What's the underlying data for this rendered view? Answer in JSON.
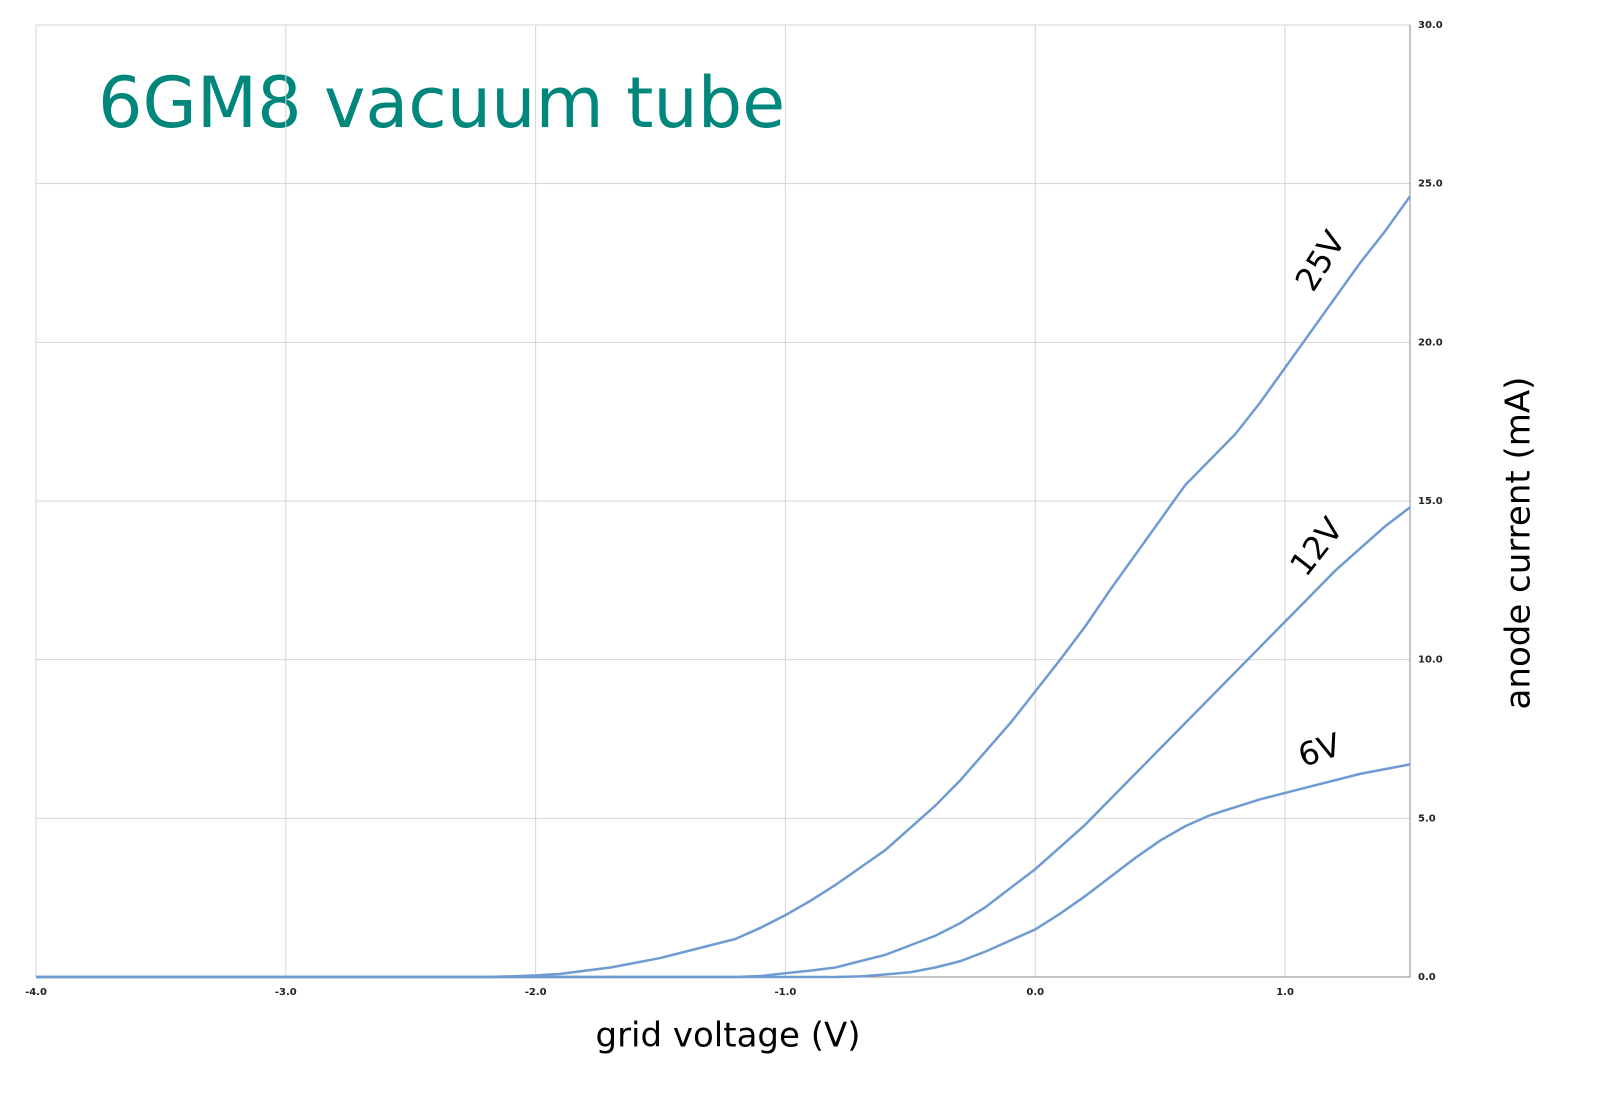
{
  "chart_data": {
    "type": "line",
    "title": "6GM8 vacuum tube",
    "x_label": "grid voltage (V)",
    "y_label": "anode current (mA)",
    "x": [
      -4.0,
      -2.2,
      -2.1,
      -2.0,
      -1.9,
      -1.8,
      -1.7,
      -1.6,
      -1.5,
      -1.4,
      -1.3,
      -1.2,
      -1.1,
      -1.0,
      -0.9,
      -0.8,
      -0.7,
      -0.6,
      -0.5,
      -0.4,
      -0.3,
      -0.2,
      -0.1,
      0.0,
      0.1,
      0.2,
      0.3,
      0.4,
      0.5,
      0.6,
      0.7,
      0.8,
      0.9,
      1.0,
      1.1,
      1.2,
      1.3,
      1.4,
      1.5
    ],
    "series": [
      {
        "name": "25V",
        "color": "#6f9bd3",
        "values": [
          0,
          0,
          0.02,
          0.05,
          0.1,
          0.2,
          0.3,
          0.45,
          0.6,
          0.8,
          1.0,
          1.2,
          1.55,
          1.95,
          2.4,
          2.9,
          3.45,
          4.0,
          4.7,
          5.4,
          6.2,
          7.1,
          8.0,
          9.0,
          10.0,
          11.05,
          12.2,
          13.3,
          14.4,
          15.5,
          16.3,
          17.1,
          18.1,
          19.2,
          20.3,
          21.4,
          22.5,
          23.5,
          24.6
        ]
      },
      {
        "name": "12V",
        "color": "#6f9bd3",
        "values": [
          0,
          0,
          0,
          0,
          0,
          0,
          0,
          0,
          0,
          0,
          0,
          0,
          0.03,
          0.12,
          0.2,
          0.3,
          0.5,
          0.7,
          1.0,
          1.3,
          1.7,
          2.2,
          2.8,
          3.4,
          4.1,
          4.8,
          5.6,
          6.4,
          7.2,
          8.0,
          8.8,
          9.6,
          10.4,
          11.2,
          12.0,
          12.8,
          13.5,
          14.2,
          14.8
        ]
      },
      {
        "name": "6V",
        "color": "#6f9bd3",
        "values": [
          0,
          0,
          0,
          0,
          0,
          0,
          0,
          0,
          0,
          0,
          0,
          0,
          0,
          0,
          0,
          0,
          0.02,
          0.08,
          0.15,
          0.3,
          0.5,
          0.8,
          1.15,
          1.5,
          2.0,
          2.55,
          3.15,
          3.75,
          4.3,
          4.75,
          5.1,
          5.35,
          5.6,
          5.8,
          6.0,
          6.2,
          6.4,
          6.55,
          6.7
        ]
      }
    ],
    "xlim": [
      -4.0,
      1.5
    ],
    "ylim": [
      0,
      30
    ],
    "xticks": [
      {
        "value": -4,
        "label": "-4.0"
      },
      {
        "value": -3,
        "label": "-3.0"
      },
      {
        "value": -2,
        "label": "-2.0"
      },
      {
        "value": -1,
        "label": "-1.0"
      },
      {
        "value": 0,
        "label": "0.0"
      },
      {
        "value": 1,
        "label": "1.0"
      }
    ],
    "yticks": [
      {
        "value": 0,
        "label": "0.0"
      },
      {
        "value": 5,
        "label": "5.0"
      },
      {
        "value": 10,
        "label": "10.0"
      },
      {
        "value": 15,
        "label": "15.0"
      },
      {
        "value": 20,
        "label": "20.0"
      },
      {
        "value": 25,
        "label": "25.0"
      },
      {
        "value": 30,
        "label": "30.0"
      }
    ],
    "grid": true,
    "title_color": "#00877c"
  }
}
